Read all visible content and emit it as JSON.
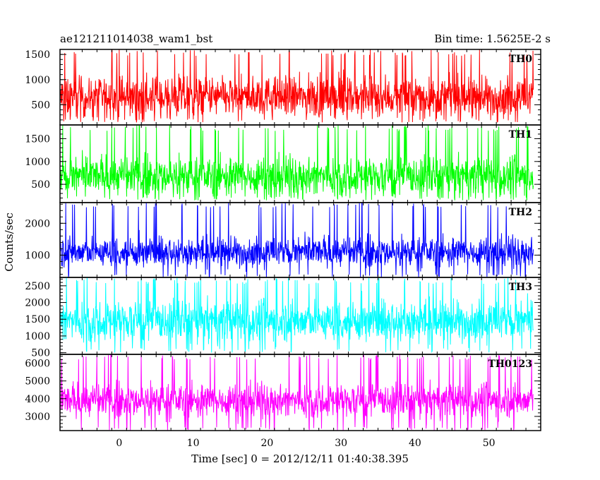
{
  "chart_data": {
    "type": "line",
    "title": "ae121211014038_wam1_bst",
    "subtitle": "Bin time: 1.5625E-2 s",
    "xlabel": "Time [sec] 0 = 2012/12/11 01:40:38.395",
    "ylabel": "Counts/sec",
    "xlim": [
      -8,
      57
    ],
    "x_ticks": [
      0,
      10,
      20,
      30,
      40,
      50
    ],
    "x_range_data": [
      -8,
      56
    ],
    "grid": false,
    "panels": [
      {
        "name": "TH0",
        "color": "#ff0000",
        "ylim": [
          100,
          1600
        ],
        "y_ticks": [
          500,
          1000,
          1500
        ],
        "baseline": 650,
        "noise": 430,
        "min": 150,
        "max": 1600,
        "y": []
      },
      {
        "name": "TH1",
        "color": "#00ff00",
        "ylim": [
          100,
          1800
        ],
        "y_ticks": [
          500,
          1000,
          1500
        ],
        "baseline": 680,
        "noise": 450,
        "min": 150,
        "max": 1800,
        "y": []
      },
      {
        "name": "TH2",
        "color": "#0000ff",
        "ylim": [
          300,
          2650
        ],
        "y_ticks": [
          1000,
          2000
        ],
        "baseline": 1100,
        "noise": 500,
        "min": 300,
        "max": 2650,
        "y": []
      },
      {
        "name": "TH3",
        "color": "#00ffff",
        "ylim": [
          450,
          2750
        ],
        "y_ticks": [
          500,
          1000,
          1500,
          2000,
          2500
        ],
        "baseline": 1450,
        "noise": 650,
        "min": 500,
        "max": 2750,
        "y": []
      },
      {
        "name": "TH0123",
        "color": "#ff00ff",
        "ylim": [
          2200,
          6500
        ],
        "y_ticks": [
          3000,
          4000,
          5000,
          6000
        ],
        "baseline": 3900,
        "noise": 1000,
        "min": 2200,
        "max": 6500,
        "y": []
      }
    ]
  }
}
